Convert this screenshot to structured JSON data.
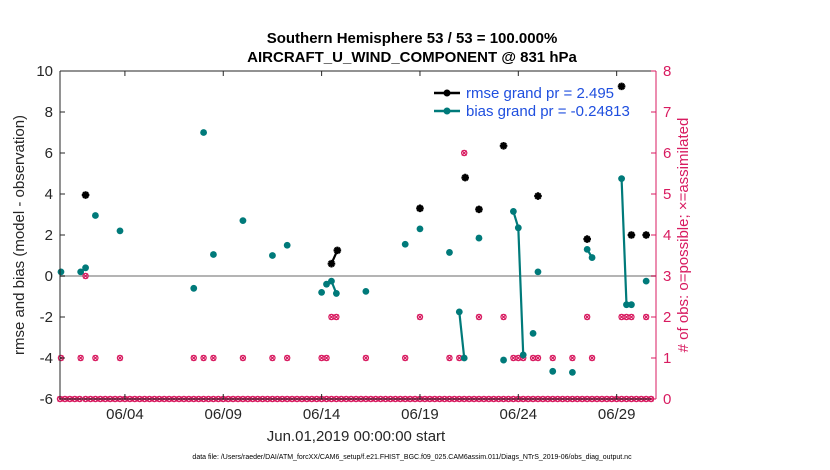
{
  "chart_data": {
    "type": "scatter",
    "title_line1": "Southern Hemisphere 53 / 53 = 100.000%",
    "title_line2": "AIRCRAFT_U_WIND_COMPONENT @ 831 hPa",
    "xlabel": "Jun.01,2019 00:00:00 start",
    "ylabel_left": "rmse and bias (model - observation)",
    "ylabel_right": "# of obs: o=possible; ×=assimilated",
    "footer": "data file: /Users/raeder/DAI/ATM_forcXX/CAM6_setup/f.e21.FHIST_BGC.f09_025.CAM6assim.011/Diags_NTrS_2019-06/obs_diag_output.nc",
    "xlim": [
      0.7,
      31.0
    ],
    "ylim_left": [
      -6,
      10
    ],
    "ylim_right": [
      0,
      8
    ],
    "left_ticks": [
      "-6",
      "-4",
      "-2",
      "0",
      "2",
      "4",
      "6",
      "8",
      "10"
    ],
    "right_ticks": [
      "0",
      "1",
      "2",
      "3",
      "4",
      "5",
      "6",
      "7",
      "8"
    ],
    "x_ticks": [
      {
        "x": 4,
        "label": "06/04"
      },
      {
        "x": 9,
        "label": "06/09"
      },
      {
        "x": 14,
        "label": "06/14"
      },
      {
        "x": 19,
        "label": "06/19"
      },
      {
        "x": 24,
        "label": "06/24"
      },
      {
        "x": 29,
        "label": "06/29"
      }
    ],
    "zero_line": 0,
    "legend": {
      "placement": "top-right",
      "entries": [
        {
          "label": "rmse grand pr = 2.495",
          "color": "#000000"
        },
        {
          "label": "bias grand pr = -0.24813",
          "color": "#007a7a"
        }
      ]
    },
    "colors": {
      "rmse": "#000000",
      "bias": "#007a7a",
      "obs": "#d81b60",
      "zero": "#b4b4b4"
    },
    "rmse_series": [
      [
        [
          2.0,
          3.95
        ]
      ],
      [
        [
          14.5,
          0.6
        ],
        [
          14.8,
          1.25
        ]
      ],
      [
        [
          19.0,
          3.3
        ]
      ],
      [
        [
          21.3,
          4.8
        ]
      ],
      [
        [
          22.0,
          3.25
        ]
      ],
      [
        [
          23.25,
          6.35
        ]
      ],
      [
        [
          25.0,
          3.9
        ]
      ],
      [
        [
          27.5,
          1.8
        ]
      ],
      [
        [
          29.25,
          9.25
        ]
      ],
      [
        [
          29.75,
          2.0
        ]
      ],
      [
        [
          30.5,
          2.0
        ]
      ]
    ],
    "bias_series": [
      [
        [
          0.75,
          0.2
        ]
      ],
      [
        [
          1.75,
          0.2
        ],
        [
          2.0,
          0.4
        ]
      ],
      [
        [
          2.5,
          2.95
        ]
      ],
      [
        [
          3.75,
          2.2
        ]
      ],
      [
        [
          7.5,
          -0.6
        ]
      ],
      [
        [
          8.0,
          7.0
        ]
      ],
      [
        [
          8.5,
          1.05
        ]
      ],
      [
        [
          10.0,
          2.7
        ]
      ],
      [
        [
          11.5,
          1.0
        ]
      ],
      [
        [
          12.25,
          1.5
        ]
      ],
      [
        [
          14.0,
          -0.8
        ]
      ],
      [
        [
          14.25,
          -0.4
        ]
      ],
      [
        [
          14.5,
          -0.25
        ],
        [
          14.75,
          -0.85
        ]
      ],
      [
        [
          16.25,
          -0.75
        ]
      ],
      [
        [
          18.25,
          1.55
        ]
      ],
      [
        [
          19.0,
          2.3
        ]
      ],
      [
        [
          20.5,
          1.15
        ]
      ],
      [
        [
          21.0,
          -1.75
        ],
        [
          21.25,
          -4.0
        ]
      ],
      [
        [
          22.0,
          1.85
        ]
      ],
      [
        [
          23.25,
          -4.1
        ]
      ],
      [
        [
          23.75,
          3.15
        ],
        [
          24.0,
          2.35
        ],
        [
          24.25,
          -3.85
        ]
      ],
      [
        [
          24.75,
          -2.8
        ]
      ],
      [
        [
          25.0,
          0.2
        ]
      ],
      [
        [
          25.75,
          -4.65
        ]
      ],
      [
        [
          26.75,
          -4.7
        ]
      ],
      [
        [
          27.5,
          1.3
        ],
        [
          27.75,
          0.9
        ]
      ],
      [
        [
          29.25,
          4.75
        ],
        [
          29.5,
          -1.4
        ],
        [
          29.75,
          -1.4
        ]
      ],
      [
        [
          30.5,
          -0.25
        ]
      ]
    ],
    "obs_possible": [
      [
        0.7,
        0
      ],
      [
        0.95,
        0
      ],
      [
        1.2,
        0
      ],
      [
        1.45,
        0
      ],
      [
        1.7,
        0
      ],
      [
        2.0,
        0
      ],
      [
        2.25,
        0
      ],
      [
        2.5,
        0
      ],
      [
        2.75,
        0
      ],
      [
        3.0,
        0
      ],
      [
        3.25,
        0
      ],
      [
        3.5,
        0
      ],
      [
        3.75,
        0
      ],
      [
        4.0,
        0
      ],
      [
        4.25,
        0
      ],
      [
        4.5,
        0
      ],
      [
        4.75,
        0
      ],
      [
        5.0,
        0
      ],
      [
        5.25,
        0
      ],
      [
        5.5,
        0
      ],
      [
        5.75,
        0
      ],
      [
        6.0,
        0
      ],
      [
        6.25,
        0
      ],
      [
        6.5,
        0
      ],
      [
        6.75,
        0
      ],
      [
        7.0,
        0
      ],
      [
        7.25,
        0
      ],
      [
        7.5,
        0
      ],
      [
        7.75,
        0
      ],
      [
        8.0,
        0
      ],
      [
        8.25,
        0
      ],
      [
        8.5,
        0
      ],
      [
        8.75,
        0
      ],
      [
        9.0,
        0
      ],
      [
        9.25,
        0
      ],
      [
        9.5,
        0
      ],
      [
        9.75,
        0
      ],
      [
        10.0,
        0
      ],
      [
        10.25,
        0
      ],
      [
        10.5,
        0
      ],
      [
        10.75,
        0
      ],
      [
        11.0,
        0
      ],
      [
        11.25,
        0
      ],
      [
        11.5,
        0
      ],
      [
        11.75,
        0
      ],
      [
        12.0,
        0
      ],
      [
        12.25,
        0
      ],
      [
        12.5,
        0
      ],
      [
        12.75,
        0
      ],
      [
        13.0,
        0
      ],
      [
        13.25,
        0
      ],
      [
        13.5,
        0
      ],
      [
        13.75,
        0
      ],
      [
        14.0,
        0
      ],
      [
        14.25,
        0
      ],
      [
        14.5,
        0
      ],
      [
        14.75,
        0
      ],
      [
        15.0,
        0
      ],
      [
        15.25,
        0
      ],
      [
        15.5,
        0
      ],
      [
        15.75,
        0
      ],
      [
        16.0,
        0
      ],
      [
        16.25,
        0
      ],
      [
        16.5,
        0
      ],
      [
        16.75,
        0
      ],
      [
        17.0,
        0
      ],
      [
        17.25,
        0
      ],
      [
        17.5,
        0
      ],
      [
        17.75,
        0
      ],
      [
        18.0,
        0
      ],
      [
        18.25,
        0
      ],
      [
        18.5,
        0
      ],
      [
        18.75,
        0
      ],
      [
        19.0,
        0
      ],
      [
        19.25,
        0
      ],
      [
        19.5,
        0
      ],
      [
        19.75,
        0
      ],
      [
        20.0,
        0
      ],
      [
        20.25,
        0
      ],
      [
        20.5,
        0
      ],
      [
        20.75,
        0
      ],
      [
        21.0,
        0
      ],
      [
        21.25,
        0
      ],
      [
        21.5,
        0
      ],
      [
        21.75,
        0
      ],
      [
        22.0,
        0
      ],
      [
        22.25,
        0
      ],
      [
        22.5,
        0
      ],
      [
        22.75,
        0
      ],
      [
        23.0,
        0
      ],
      [
        23.25,
        0
      ],
      [
        23.5,
        0
      ],
      [
        23.75,
        0
      ],
      [
        24.0,
        0
      ],
      [
        24.25,
        0
      ],
      [
        24.5,
        0
      ],
      [
        24.75,
        0
      ],
      [
        25.0,
        0
      ],
      [
        25.25,
        0
      ],
      [
        25.5,
        0
      ],
      [
        25.75,
        0
      ],
      [
        26.0,
        0
      ],
      [
        26.25,
        0
      ],
      [
        26.5,
        0
      ],
      [
        26.75,
        0
      ],
      [
        27.0,
        0
      ],
      [
        27.25,
        0
      ],
      [
        27.5,
        0
      ],
      [
        27.75,
        0
      ],
      [
        28.0,
        0
      ],
      [
        28.25,
        0
      ],
      [
        28.5,
        0
      ],
      [
        28.75,
        0
      ],
      [
        29.0,
        0
      ],
      [
        29.25,
        0
      ],
      [
        29.5,
        0
      ],
      [
        29.75,
        0
      ],
      [
        30.0,
        0
      ],
      [
        30.25,
        0
      ],
      [
        30.5,
        0
      ],
      [
        30.75,
        0
      ],
      [
        0.75,
        1
      ],
      [
        2.0,
        3
      ],
      [
        1.75,
        1
      ],
      [
        2.5,
        1
      ],
      [
        3.75,
        1
      ],
      [
        7.5,
        1
      ],
      [
        8.0,
        1
      ],
      [
        8.5,
        1
      ],
      [
        10.0,
        1
      ],
      [
        11.5,
        1
      ],
      [
        12.25,
        1
      ],
      [
        14.0,
        1
      ],
      [
        14.25,
        1
      ],
      [
        14.5,
        2
      ],
      [
        14.75,
        2
      ],
      [
        16.25,
        1
      ],
      [
        18.25,
        1
      ],
      [
        19.0,
        2
      ],
      [
        20.5,
        1
      ],
      [
        21.0,
        1
      ],
      [
        21.25,
        6
      ],
      [
        22.0,
        2
      ],
      [
        23.25,
        2
      ],
      [
        23.75,
        1
      ],
      [
        24.0,
        1
      ],
      [
        24.25,
        1
      ],
      [
        24.75,
        1
      ],
      [
        25.0,
        1
      ],
      [
        25.75,
        1
      ],
      [
        26.75,
        1
      ],
      [
        27.5,
        2
      ],
      [
        27.75,
        1
      ],
      [
        29.25,
        2
      ],
      [
        29.5,
        2
      ],
      [
        29.75,
        2
      ],
      [
        30.5,
        2
      ]
    ]
  }
}
